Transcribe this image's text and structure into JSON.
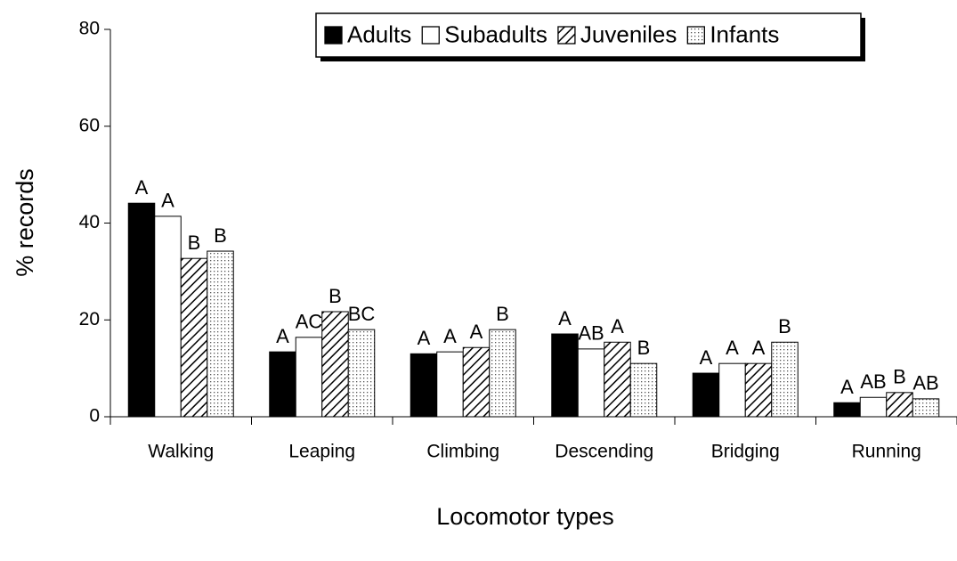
{
  "chart_data": {
    "type": "bar",
    "x_label": "Locomotor types",
    "y_label": "% records",
    "categories": [
      "Walking",
      "Leaping",
      "Climbing",
      "Descending",
      "Bridging",
      "Running"
    ],
    "series": [
      {
        "name": "Adults",
        "color": "#000000",
        "pattern": "solid",
        "values": [
          44.1,
          13.4,
          13,
          17.1,
          9,
          2.9
        ],
        "letters": [
          "A",
          "A",
          "A",
          "A",
          "A",
          "A"
        ]
      },
      {
        "name": "Subadults",
        "color": "#ffffff",
        "pattern": "solid",
        "values": [
          41.4,
          16.4,
          13.4,
          14,
          11,
          4
        ],
        "letters": [
          "A",
          "AC",
          "A",
          "AB",
          "A",
          "AB"
        ]
      },
      {
        "name": "Juveniles",
        "color": "#ffffff",
        "pattern": "hatch",
        "values": [
          32.7,
          21.7,
          14.3,
          15.4,
          11,
          5
        ],
        "letters": [
          "B",
          "B",
          "A",
          "A",
          "A",
          "B"
        ]
      },
      {
        "name": "Infants",
        "color": "#e8e8e8",
        "pattern": "dots",
        "values": [
          34.2,
          18,
          18,
          11,
          15.4,
          3.7
        ],
        "letters": [
          "B",
          "BC",
          "B",
          "B",
          "B",
          "AB"
        ]
      }
    ],
    "ylim": [
      0,
      80
    ],
    "yticks": [
      0,
      20,
      40,
      60,
      80
    ],
    "grid": false,
    "legend": "top"
  }
}
